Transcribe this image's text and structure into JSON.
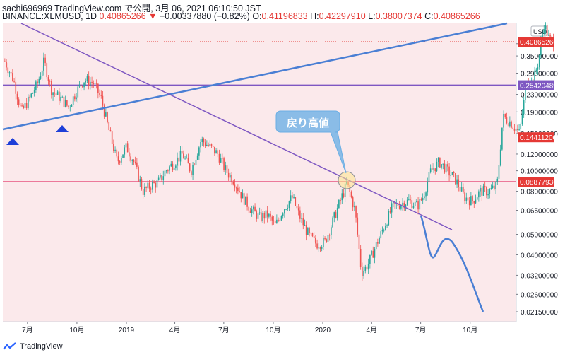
{
  "header": {
    "line1": "sachi696969 TradingView.com で公開, 3月 06, 2021 06:10:50 JST",
    "symbol": "BINANCE:XLMUSD, 1D",
    "last": "0.40865266",
    "arrow": "▼",
    "change": "−0.00337880 (−0.82%)",
    "o_label": "O:",
    "o": "0.41196833",
    "h_label": "H:",
    "h": "0.42297910",
    "l_label": "L:",
    "l": "0.38007374",
    "c_label": "C:",
    "c": "0.40865266"
  },
  "footer": {
    "brand": "TradingView"
  },
  "colors": {
    "background": "#fbe9eb",
    "up": "#26a69a",
    "down": "#ef5350",
    "trend_blue": "#4a7fd4",
    "trend_purple": "#7e57c2",
    "horizontal_red": "#e75480",
    "label_red": "#e53935"
  },
  "chart_data": {
    "type": "candlestick",
    "y_scale": "log",
    "y_axis_unit": "USD",
    "y_ticks": [
      "0.4",
      "0.35000000",
      "0.29000000",
      "0.23000000",
      "0.19000000",
      "0.15000000",
      "0.12000000",
      "0.10000000",
      "0.08000000",
      "0.06500000",
      "0.05000000",
      "0.04000000",
      "0.03200000",
      "0.02600000",
      "0.02150000"
    ],
    "x_ticks": [
      "7月",
      "10月",
      "2019",
      "4月",
      "7月",
      "10月",
      "2020",
      "4月",
      "7月",
      "10月"
    ],
    "price_labels": [
      {
        "value": "0.40865266",
        "color": "#e53935"
      },
      {
        "value": "0.25420489",
        "color": "#7e57c2"
      },
      {
        "value": "0.14411206",
        "color": "#e53935"
      },
      {
        "value": "0.08877936",
        "color": "#e53935"
      }
    ],
    "horizontal_lines": [
      0.25420489,
      0.08877936
    ],
    "current_price": 0.40865266,
    "annotation": "戻り高値",
    "close_path": [
      [
        "2018-05-20",
        0.33
      ],
      [
        "2018-06-05",
        0.27
      ],
      [
        "2018-06-20",
        0.19
      ],
      [
        "2018-07-05",
        0.22
      ],
      [
        "2018-07-20",
        0.26
      ],
      [
        "2018-08-01",
        0.33
      ],
      [
        "2018-08-15",
        0.24
      ],
      [
        "2018-09-01",
        0.22
      ],
      [
        "2018-09-15",
        0.2
      ],
      [
        "2018-10-01",
        0.24
      ],
      [
        "2018-10-15",
        0.27
      ],
      [
        "2018-11-01",
        0.26
      ],
      [
        "2018-11-15",
        0.22
      ],
      [
        "2018-12-01",
        0.15
      ],
      [
        "2018-12-15",
        0.11
      ],
      [
        "2019-01-01",
        0.13
      ],
      [
        "2019-01-15",
        0.11
      ],
      [
        "2019-02-01",
        0.08
      ],
      [
        "2019-02-15",
        0.085
      ],
      [
        "2019-03-01",
        0.088
      ],
      [
        "2019-03-15",
        0.1
      ],
      [
        "2019-04-01",
        0.11
      ],
      [
        "2019-04-15",
        0.12
      ],
      [
        "2019-05-01",
        0.1
      ],
      [
        "2019-05-20",
        0.14
      ],
      [
        "2019-06-05",
        0.13
      ],
      [
        "2019-06-20",
        0.12
      ],
      [
        "2019-07-05",
        0.1
      ],
      [
        "2019-07-20",
        0.09
      ],
      [
        "2019-08-05",
        0.075
      ],
      [
        "2019-08-20",
        0.066
      ],
      [
        "2019-09-05",
        0.06
      ],
      [
        "2019-09-20",
        0.062
      ],
      [
        "2019-10-05",
        0.055
      ],
      [
        "2019-10-20",
        0.066
      ],
      [
        "2019-11-05",
        0.075
      ],
      [
        "2019-11-20",
        0.06
      ],
      [
        "2019-12-05",
        0.05
      ],
      [
        "2019-12-20",
        0.045
      ],
      [
        "2020-01-05",
        0.046
      ],
      [
        "2020-01-20",
        0.058
      ],
      [
        "2020-02-05",
        0.075
      ],
      [
        "2020-02-15",
        0.087
      ],
      [
        "2020-03-01",
        0.065
      ],
      [
        "2020-03-13",
        0.033
      ],
      [
        "2020-03-25",
        0.036
      ],
      [
        "2020-04-10",
        0.045
      ],
      [
        "2020-04-25",
        0.055
      ],
      [
        "2020-05-10",
        0.068
      ],
      [
        "2020-05-25",
        0.07
      ],
      [
        "2020-06-10",
        0.072
      ],
      [
        "2020-06-25",
        0.068
      ],
      [
        "2020-07-05",
        0.075
      ],
      [
        "2020-07-20",
        0.1
      ],
      [
        "2020-08-05",
        0.11
      ],
      [
        "2020-08-20",
        0.1
      ],
      [
        "2020-09-05",
        0.09
      ],
      [
        "2020-09-20",
        0.075
      ],
      [
        "2020-10-05",
        0.072
      ],
      [
        "2020-10-20",
        0.08
      ],
      [
        "2020-11-05",
        0.08
      ],
      [
        "2020-11-20",
        0.085
      ],
      [
        "2020-12-01",
        0.18
      ],
      [
        "2020-12-15",
        0.17
      ],
      [
        "2021-01-01",
        0.15
      ],
      [
        "2021-01-15",
        0.28
      ],
      [
        "2021-01-25",
        0.26
      ],
      [
        "2021-02-05",
        0.33
      ],
      [
        "2021-02-15",
        0.5
      ],
      [
        "2021-02-25",
        0.42
      ],
      [
        "2021-03-05",
        0.4086
      ]
    ]
  }
}
